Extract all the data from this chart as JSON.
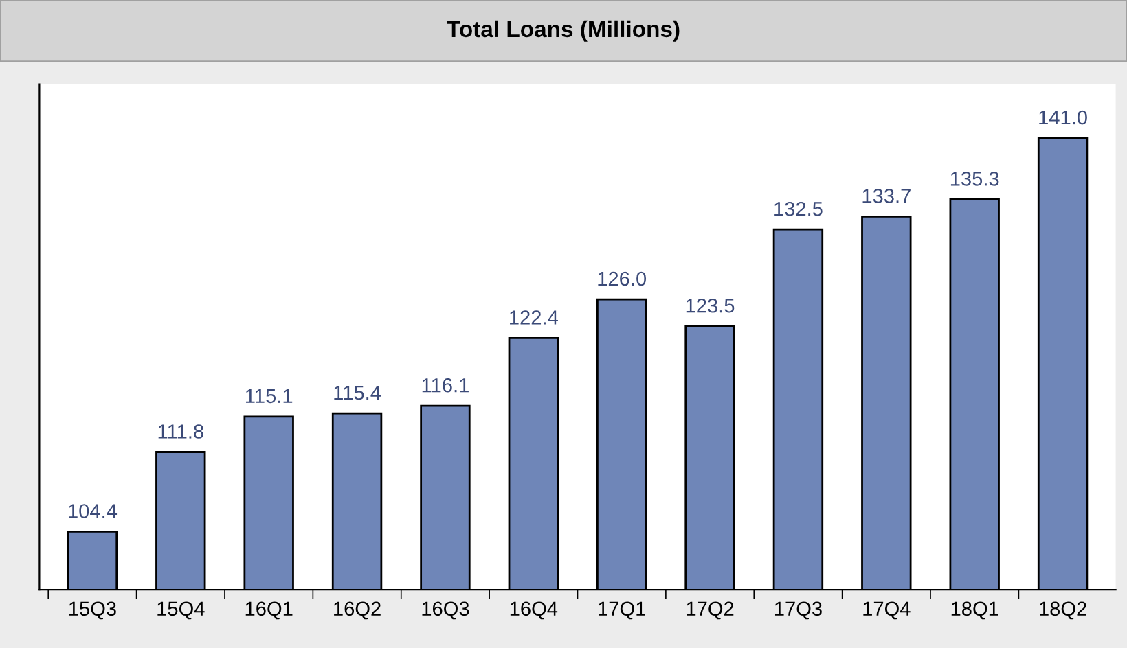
{
  "chart_data": {
    "type": "bar",
    "title": "Total Loans (Millions)",
    "categories": [
      "15Q3",
      "15Q4",
      "16Q1",
      "16Q2",
      "16Q3",
      "16Q4",
      "17Q1",
      "17Q2",
      "17Q3",
      "17Q4",
      "18Q1",
      "18Q2"
    ],
    "values": [
      104.4,
      111.8,
      115.1,
      115.4,
      116.1,
      122.4,
      126.0,
      123.5,
      132.5,
      133.7,
      135.3,
      141.0
    ],
    "color": "#6f86b8",
    "ylim": [
      99,
      146
    ],
    "value_labels": [
      "104.4",
      "111.8",
      "115.1",
      "115.4",
      "116.1",
      "122.4",
      "126.0",
      "123.5",
      "132.5",
      "133.7",
      "135.3",
      "141.0"
    ],
    "tick_labels": "x",
    "grid": false,
    "legend": false
  }
}
